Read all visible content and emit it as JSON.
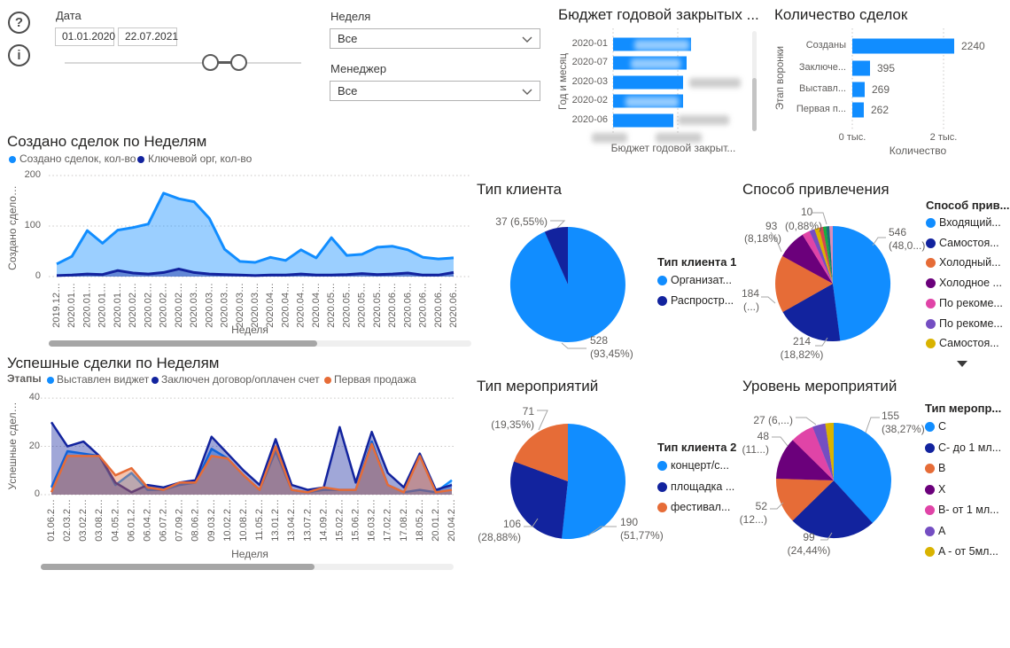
{
  "header": {
    "help_icon": "?",
    "info_icon": "i",
    "date_filter": {
      "label": "Дата",
      "start": "01.01.2020",
      "end": "22.07.2021"
    },
    "week_filter": {
      "label": "Неделя",
      "value": "Все"
    },
    "manager_filter": {
      "label": "Менеджер",
      "value": "Все"
    }
  },
  "chart_data": [
    {
      "id": "budget",
      "type": "bar",
      "orientation": "horizontal",
      "title": "Бюджет годовой закрытых ...",
      "categories": [
        "2020-01",
        "2020-07",
        "2020-03",
        "2020-02",
        "2020-06"
      ],
      "values_redacted": true,
      "relative_lengths": [
        1.0,
        0.94,
        0.9,
        0.9,
        0.77
      ],
      "xlabel": "Бюджет годовой закрыт...",
      "ylabel": "Год и месяц",
      "bar_color": "#118DFF"
    },
    {
      "id": "deal_counts",
      "type": "bar",
      "orientation": "horizontal",
      "title": "Количество сделок",
      "categories": [
        "Созданы",
        "Заключе...",
        "Выставл...",
        "Первая п..."
      ],
      "values": [
        2240,
        395,
        269,
        262
      ],
      "x_ticks": [
        "0 тыс.",
        "2 тыс."
      ],
      "x_tick_values": [
        0,
        2000
      ],
      "xlabel": "Количество",
      "ylabel": "Этап воронки",
      "bar_color": "#118DFF"
    },
    {
      "id": "created_by_week",
      "type": "area",
      "title": "Создано сделок по Неделям",
      "xlabel": "Неделя",
      "ylabel": "Создано сдело…",
      "y_ticks": [
        0,
        100,
        200
      ],
      "ylim": [
        0,
        200
      ],
      "categories": [
        "2019.12…",
        "2020.01…",
        "2020.01…",
        "2020.01…",
        "2020.01…",
        "2020.02…",
        "2020.02…",
        "2020.02…",
        "2020.02…",
        "2020.03…",
        "2020.03…",
        "2020.03…",
        "2020.03…",
        "2020.03…",
        "2020.04…",
        "2020.04…",
        "2020.04…",
        "2020.04…",
        "2020.05…",
        "2020.05…",
        "2020.05…",
        "2020.05…",
        "2020.06…",
        "2020.06…",
        "2020.06…",
        "2020.06…",
        "2020.06…"
      ],
      "series": [
        {
          "name": "Создано сделок, кол-во",
          "color": "#118DFF",
          "values": [
            25,
            40,
            91,
            66,
            92,
            97,
            104,
            165,
            154,
            148,
            115,
            54,
            30,
            28,
            38,
            32,
            53,
            37,
            77,
            42,
            44,
            58,
            60,
            53,
            38,
            35,
            37
          ]
        },
        {
          "name": "Ключевой орг, кол-во",
          "color": "#12239E",
          "values": [
            2,
            3,
            5,
            4,
            12,
            7,
            5,
            8,
            15,
            8,
            5,
            4,
            3,
            2,
            3,
            3,
            5,
            3,
            3,
            4,
            6,
            4,
            5,
            7,
            3,
            3,
            8
          ]
        }
      ]
    },
    {
      "id": "success_by_week",
      "type": "area",
      "title": "Успешные сделки по Неделям",
      "legend_title": "Этапы",
      "xlabel": "Неделя",
      "ylabel": "Успешные сдел…",
      "y_ticks": [
        0,
        20,
        40
      ],
      "ylim": [
        0,
        40
      ],
      "categories": [
        "01.06.2…",
        "02.03.2…",
        "03.02.2…",
        "03.08.2…",
        "04.05.2…",
        "06.01.2…",
        "06.04.2…",
        "06.07.2…",
        "07.09.2…",
        "08.06.2…",
        "09.03.2…",
        "10.02.2…",
        "10.08.2…",
        "11.05.2…",
        "13.01.2…",
        "13.04.2…",
        "13.07.2…",
        "14.09.2…",
        "15.02.2…",
        "15.06.2…",
        "16.03.2…",
        "17.02.2…",
        "17.08.2…",
        "18.05.2…",
        "20.01.2…",
        "20.04.2…"
      ],
      "series": [
        {
          "name": "Выставлен виджет",
          "color": "#118DFF",
          "values": [
            3,
            18,
            17,
            16,
            4,
            9,
            2,
            2,
            4,
            5,
            19,
            15,
            8,
            2,
            18,
            2,
            1,
            2,
            2,
            2,
            22,
            4,
            1,
            2,
            1,
            6
          ]
        },
        {
          "name": "Заключен договор/оплачен счет",
          "color": "#12239E",
          "values": [
            30,
            20,
            22,
            16,
            5,
            1,
            4,
            3,
            5,
            6,
            24,
            17,
            10,
            4,
            23,
            4,
            2,
            3,
            28,
            5,
            26,
            9,
            3,
            17,
            2,
            4
          ]
        },
        {
          "name": "Первая продажа",
          "color": "#E66C37",
          "values": [
            1,
            16,
            16,
            16,
            8,
            11,
            3,
            2,
            5,
            5,
            16,
            15,
            8,
            2,
            20,
            2,
            1,
            3,
            2,
            2,
            21,
            4,
            1,
            16,
            1,
            2
          ]
        }
      ]
    },
    {
      "id": "client_type",
      "type": "pie",
      "title": "Тип клиента",
      "legend_title": "Тип клиента 1",
      "slices": [
        {
          "name": "Организат...",
          "value": 528,
          "pct": "93,45%",
          "share": 93.45,
          "color": "#118DFF"
        },
        {
          "name": "Распростр...",
          "value": 37,
          "pct": "6,55%",
          "share": 6.55,
          "color": "#12239E"
        }
      ],
      "labels": [
        {
          "lines": [
            "37 (6,55%)"
          ]
        },
        {
          "lines": [
            "528",
            "(93,45%)"
          ]
        }
      ]
    },
    {
      "id": "acquisition",
      "type": "pie",
      "title": "Способ привлечения",
      "legend_title": "Способ прив...",
      "legend_overflow": true,
      "slices": [
        {
          "name": "Входящий...",
          "value": 546,
          "pct": "48,0...",
          "share": 48.02,
          "color": "#118DFF"
        },
        {
          "name": "Самостоя...",
          "value": 214,
          "pct": "18,82%",
          "share": 18.82,
          "color": "#12239E"
        },
        {
          "name": "Холодный...",
          "value": 184,
          "share": 16.18,
          "color": "#E66C37"
        },
        {
          "name": "Холодное ...",
          "value": 93,
          "pct": "8,18%",
          "share": 8.18,
          "color": "#6B007B"
        },
        {
          "name": "По рекоме...",
          "share": 2.2,
          "color": "#E044A7"
        },
        {
          "name": "По рекоме...",
          "share": 1.5,
          "color": "#744EC2"
        },
        {
          "name": "Самостоя...",
          "share": 1.3,
          "color": "#D9B300"
        },
        {
          "name": null,
          "share": 1.1,
          "color": "#D64550"
        },
        {
          "name": null,
          "value": 10,
          "pct": "0,88%",
          "share": 0.88,
          "color": "#1AAB40"
        },
        {
          "name": null,
          "share": 0.9,
          "color": "#197278"
        },
        {
          "name": null,
          "share": 0.92,
          "color": "#DE8DBA"
        }
      ],
      "labels": [
        {
          "lines": [
            "546",
            "(48,0...)"
          ]
        },
        {
          "lines": [
            "214",
            "(18,82%)"
          ]
        },
        {
          "lines": [
            "184",
            "(...)"
          ]
        },
        {
          "lines": [
            "10"
          ]
        },
        {
          "lines": [
            "93"
          ]
        },
        {
          "lines": [
            "(0,88%)"
          ]
        },
        {
          "lines": [
            "(8,18%)"
          ]
        }
      ]
    },
    {
      "id": "event_type",
      "type": "pie",
      "title": "Тип мероприятий",
      "legend_title": "Тип клиента 2",
      "slices": [
        {
          "name": "концерт/с...",
          "value": 190,
          "pct": "51,77%",
          "share": 51.77,
          "color": "#118DFF"
        },
        {
          "name": "площадка ...",
          "value": 106,
          "pct": "28,88%",
          "share": 28.88,
          "color": "#12239E"
        },
        {
          "name": "фестивал...",
          "value": 71,
          "pct": "19,35%",
          "share": 19.35,
          "color": "#E66C37"
        }
      ],
      "labels": [
        {
          "lines": [
            "190",
            "(51,77%)"
          ]
        },
        {
          "lines": [
            "106",
            "(28,88%)"
          ]
        },
        {
          "lines": [
            "71",
            "(19,35%)"
          ]
        }
      ]
    },
    {
      "id": "event_level",
      "type": "pie",
      "title": "Уровень мероприятий",
      "legend_title": "Тип меропр...",
      "slices": [
        {
          "name": "C",
          "value": 155,
          "pct": "38,27%",
          "share": 38.27,
          "color": "#118DFF"
        },
        {
          "name": "C- до 1 мл...",
          "value": 99,
          "pct": "24,44%",
          "share": 24.44,
          "color": "#12239E"
        },
        {
          "name": "B",
          "value": 52,
          "pct": "12...",
          "share": 12.84,
          "color": "#E66C37"
        },
        {
          "name": "X",
          "value": 48,
          "pct": "11...",
          "share": 11.85,
          "color": "#6B007B"
        },
        {
          "name": "B- от 1 мл...",
          "value": 27,
          "pct": "6,...",
          "share": 6.67,
          "color": "#E044A7"
        },
        {
          "name": "A",
          "share": 3.63,
          "color": "#744EC2"
        },
        {
          "name": "A - от 5мл...",
          "share": 2.3,
          "color": "#D9B300"
        }
      ],
      "labels": [
        {
          "lines": [
            "155",
            "(38,27%)"
          ]
        },
        {
          "lines": [
            "99",
            "(24,44%)"
          ]
        },
        {
          "lines": [
            "52",
            "(12...)"
          ]
        },
        {
          "lines": [
            "48",
            "(11...)"
          ]
        },
        {
          "lines": [
            "27 (6,...)"
          ]
        }
      ]
    }
  ]
}
